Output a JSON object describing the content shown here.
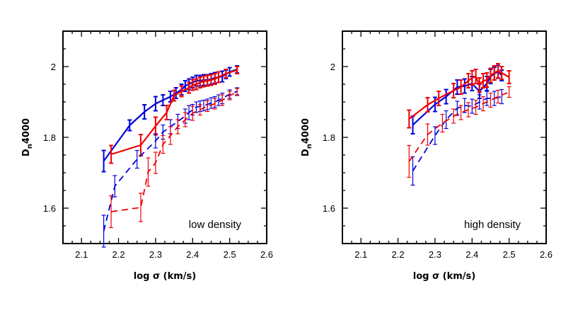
{
  "chart_data": [
    {
      "type": "line",
      "annotation": "low density",
      "xlabel": "log σ (km/s)",
      "ylabel_main": "D",
      "ylabel_sub": "n",
      "ylabel_rest": "4000",
      "xlim": [
        2.05,
        2.6
      ],
      "ylim": [
        1.5,
        2.1
      ],
      "xticks": [
        2.1,
        2.2,
        2.3,
        2.4,
        2.5,
        2.6
      ],
      "xtick_labels": [
        "2.1",
        "2.2",
        "2.3",
        "2.4",
        "2.5",
        "2.6"
      ],
      "yticks": [
        1.6,
        1.8,
        2.0
      ],
      "ytick_labels": [
        "1.6",
        "1.8",
        "2"
      ],
      "series": [
        {
          "color": "#0000dd",
          "style": "solid",
          "width": 2.2,
          "x": [
            2.16,
            2.23,
            2.27,
            2.3,
            2.32,
            2.34,
            2.355,
            2.37,
            2.38,
            2.39,
            2.4,
            2.41,
            2.42,
            2.43,
            2.44,
            2.45,
            2.46,
            2.47,
            2.48,
            2.49,
            2.5,
            2.52
          ],
          "y": [
            1.733,
            1.834,
            1.872,
            1.895,
            1.905,
            1.915,
            1.925,
            1.935,
            1.945,
            1.95,
            1.955,
            1.96,
            1.96,
            1.962,
            1.962,
            1.965,
            1.968,
            1.97,
            1.972,
            1.978,
            1.985,
            1.992
          ],
          "err": [
            0.03,
            0.015,
            0.02,
            0.02,
            0.015,
            0.015,
            0.015,
            0.015,
            0.015,
            0.015,
            0.015,
            0.015,
            0.015,
            0.015,
            0.015,
            0.015,
            0.015,
            0.015,
            0.015,
            0.012,
            0.012,
            0.01
          ]
        },
        {
          "color": "#ee0000",
          "style": "solid",
          "width": 2.2,
          "x": [
            2.18,
            2.26,
            2.3,
            2.33,
            2.35,
            2.37,
            2.39,
            2.4,
            2.41,
            2.42,
            2.43,
            2.44,
            2.45,
            2.46,
            2.47,
            2.49,
            2.52
          ],
          "y": [
            1.752,
            1.778,
            1.832,
            1.87,
            1.918,
            1.93,
            1.94,
            1.948,
            1.95,
            1.955,
            1.958,
            1.96,
            1.962,
            1.965,
            1.97,
            1.98,
            1.99
          ],
          "err": [
            0.025,
            0.03,
            0.025,
            0.02,
            0.015,
            0.015,
            0.015,
            0.015,
            0.015,
            0.015,
            0.015,
            0.015,
            0.015,
            0.015,
            0.015,
            0.012,
            0.01
          ]
        },
        {
          "color": "#0000dd",
          "style": "dashed",
          "width": 1.8,
          "x": [
            2.16,
            2.19,
            2.25,
            2.3,
            2.32,
            2.34,
            2.36,
            2.38,
            2.39,
            2.4,
            2.41,
            2.42,
            2.43,
            2.44,
            2.45,
            2.46,
            2.47,
            2.48,
            2.5,
            2.52
          ],
          "y": [
            1.535,
            1.662,
            1.738,
            1.79,
            1.815,
            1.83,
            1.845,
            1.86,
            1.87,
            1.878,
            1.885,
            1.888,
            1.89,
            1.893,
            1.897,
            1.9,
            1.905,
            1.91,
            1.922,
            1.93
          ],
          "err": [
            0.045,
            0.03,
            0.025,
            0.02,
            0.02,
            0.02,
            0.02,
            0.02,
            0.02,
            0.015,
            0.015,
            0.015,
            0.015,
            0.015,
            0.015,
            0.015,
            0.015,
            0.015,
            0.012,
            0.01
          ]
        },
        {
          "color": "#ee0000",
          "style": "dashed",
          "width": 1.8,
          "x": [
            2.18,
            2.26,
            2.28,
            2.3,
            2.32,
            2.34,
            2.36,
            2.38,
            2.4,
            2.42,
            2.44,
            2.46,
            2.48,
            2.5,
            2.52
          ],
          "y": [
            1.59,
            1.602,
            1.702,
            1.728,
            1.78,
            1.805,
            1.83,
            1.85,
            1.868,
            1.878,
            1.888,
            1.895,
            1.905,
            1.918,
            1.928
          ],
          "err": [
            0.045,
            0.04,
            0.04,
            0.03,
            0.025,
            0.025,
            0.02,
            0.02,
            0.02,
            0.015,
            0.015,
            0.015,
            0.015,
            0.012,
            0.01
          ]
        }
      ]
    },
    {
      "type": "line",
      "annotation": "high density",
      "xlabel": "log σ (km/s)",
      "ylabel_main": "D",
      "ylabel_sub": "n",
      "ylabel_rest": "4000",
      "xlim": [
        2.05,
        2.6
      ],
      "ylim": [
        1.5,
        2.1
      ],
      "xticks": [
        2.1,
        2.2,
        2.3,
        2.4,
        2.5,
        2.6
      ],
      "xtick_labels": [
        "2.1",
        "2.2",
        "2.3",
        "2.4",
        "2.5",
        "2.6"
      ],
      "yticks": [
        1.6,
        1.8,
        2.0
      ],
      "ytick_labels": [
        "1.6",
        "1.8",
        "2"
      ],
      "series": [
        {
          "color": "#0000dd",
          "style": "solid",
          "width": 2.2,
          "x": [
            2.24,
            2.3,
            2.33,
            2.36,
            2.38,
            2.4,
            2.42,
            2.44,
            2.45,
            2.46,
            2.47,
            2.48
          ],
          "y": [
            1.835,
            1.893,
            1.915,
            1.942,
            1.945,
            1.952,
            1.93,
            1.952,
            1.972,
            1.98,
            1.985,
            1.975
          ],
          "err": [
            0.025,
            0.02,
            0.02,
            0.02,
            0.02,
            0.02,
            0.02,
            0.02,
            0.02,
            0.018,
            0.018,
            0.015
          ]
        },
        {
          "color": "#ee0000",
          "style": "solid",
          "width": 2.2,
          "x": [
            2.23,
            2.28,
            2.31,
            2.35,
            2.37,
            2.39,
            2.4,
            2.41,
            2.42,
            2.43,
            2.44,
            2.45,
            2.46,
            2.47,
            2.48,
            2.5
          ],
          "y": [
            1.852,
            1.892,
            1.91,
            1.932,
            1.942,
            1.96,
            1.968,
            1.972,
            1.948,
            1.96,
            1.962,
            1.975,
            1.982,
            1.988,
            1.982,
            1.97
          ],
          "err": [
            0.025,
            0.02,
            0.02,
            0.02,
            0.02,
            0.02,
            0.02,
            0.02,
            0.02,
            0.02,
            0.02,
            0.02,
            0.02,
            0.02,
            0.018,
            0.018
          ]
        },
        {
          "color": "#0000dd",
          "style": "dashed",
          "width": 1.8,
          "x": [
            2.24,
            2.3,
            2.33,
            2.36,
            2.38,
            2.4,
            2.42,
            2.44,
            2.46,
            2.48
          ],
          "y": [
            1.705,
            1.805,
            1.85,
            1.882,
            1.89,
            1.888,
            1.9,
            1.91,
            1.91,
            1.915
          ],
          "err": [
            0.04,
            0.025,
            0.025,
            0.02,
            0.02,
            0.02,
            0.02,
            0.02,
            0.02,
            0.02
          ]
        },
        {
          "color": "#ee0000",
          "style": "dashed",
          "width": 1.8,
          "x": [
            2.23,
            2.28,
            2.32,
            2.35,
            2.37,
            2.39,
            2.41,
            2.43,
            2.45,
            2.47,
            2.5
          ],
          "y": [
            1.732,
            1.808,
            1.84,
            1.86,
            1.87,
            1.878,
            1.885,
            1.895,
            1.905,
            1.915,
            1.928
          ],
          "err": [
            0.045,
            0.03,
            0.025,
            0.02,
            0.02,
            0.02,
            0.02,
            0.02,
            0.02,
            0.018,
            0.015
          ]
        }
      ]
    }
  ]
}
